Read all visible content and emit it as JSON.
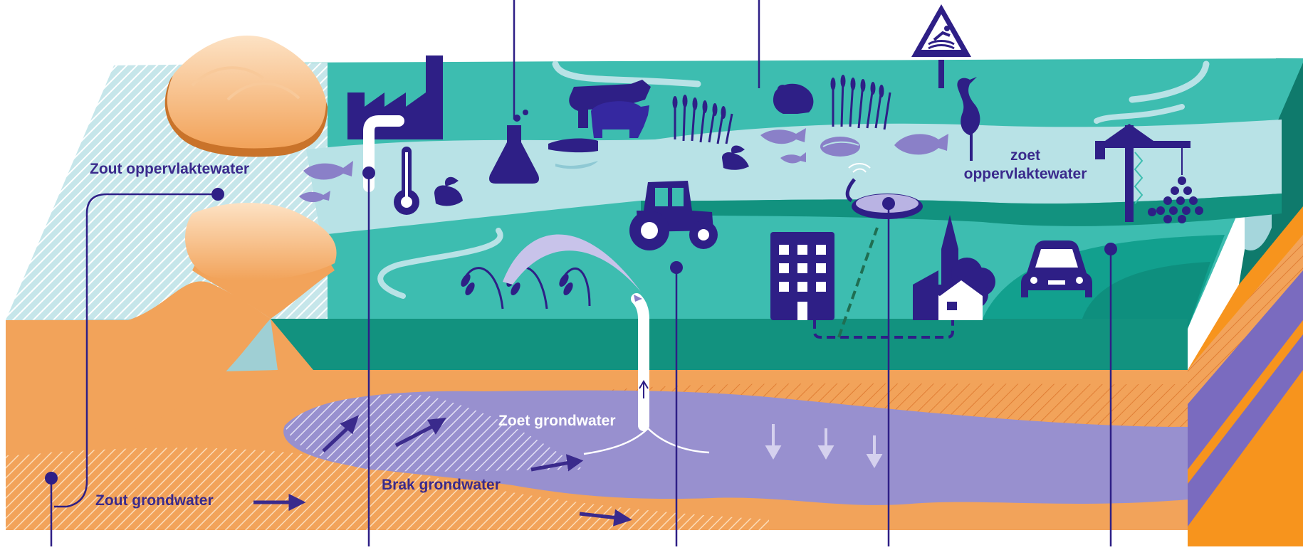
{
  "labels": {
    "zout_oppervlaktewater": "Zout oppervlaktewater",
    "zoet_oppervlaktewater_line1": "zoet",
    "zoet_oppervlaktewater_line2": "oppervlaktewater",
    "zoet_grondwater": "Zoet grondwater",
    "brak_grondwater": "Brak grondwater",
    "zout_grondwater": "Zout grondwater"
  },
  "icons": [
    "factory-icon",
    "outlet-pipe-icon",
    "thermometer-icon",
    "duck-icon",
    "lab-flask-icon",
    "cow-icon",
    "pig-icon",
    "reed-icon",
    "frog-icon",
    "swimming-warning-sign-icon",
    "fish-icon",
    "mussel-icon",
    "heron-icon",
    "crane-icon",
    "tractor-icon",
    "water-treatment-icon",
    "building-icon",
    "church-icon",
    "house-icon",
    "tree-icon",
    "car-icon",
    "wheat-icon",
    "sprinkler-icon",
    "well-pipe-icon",
    "dune-icon"
  ],
  "colors": {
    "land": "#3dbdb0",
    "land_edge": "#12927f",
    "river": "#b8e2e6",
    "soil": "#f2a35a",
    "fresh_groundwater": "#9890cf",
    "icon": "#2e1f86",
    "callout_line": "#2e1f86"
  }
}
